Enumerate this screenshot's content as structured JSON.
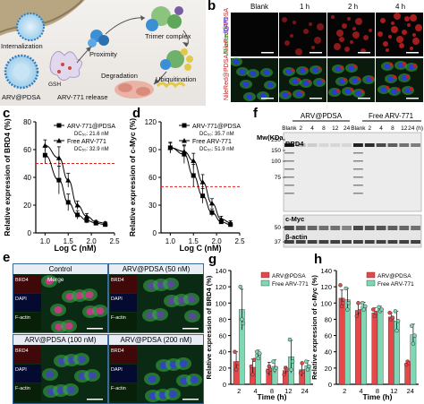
{
  "panel_labels": {
    "a": "a",
    "b": "b",
    "c": "c",
    "d": "d",
    "e": "e",
    "f": "f",
    "g": "g",
    "h": "h"
  },
  "panel_a": {
    "labels": {
      "internalization": "Internalization",
      "proximity": "Proximity",
      "trimer": "Trimer complex",
      "arv_pdsa": "ARV@PDSA",
      "gsh": "GSH",
      "release": "ARV-771 release",
      "degradation": "Degradation",
      "ubiquitination": "Ubiquitination"
    }
  },
  "panel_b": {
    "columns": [
      "Blank",
      "1 h",
      "2 h",
      "4 h"
    ],
    "row_labels": {
      "r1": "NileRed@PDSA",
      "r2a": "NileRed@PDSA",
      "r2b": "/F-actin",
      "r2c": "/DAPI"
    },
    "colors": {
      "red": "#c02020",
      "green": "#35b040",
      "blue": "#2b3bd0"
    }
  },
  "panel_f": {
    "mw_label": "Mw(KDa)",
    "mw_markers": [
      "250",
      "150",
      "100",
      "75",
      "50",
      "37"
    ],
    "groups": [
      "ARV@PDSA",
      "Free ARV-771"
    ],
    "lanes": [
      "Blank",
      "2",
      "4",
      "8",
      "12",
      "24",
      "Blank",
      "2",
      "4",
      "8",
      "12",
      "24 (h)"
    ],
    "bands": [
      "BRD4",
      "c-Myc",
      "β-actin"
    ]
  },
  "panel_e": {
    "images": [
      {
        "title": "Control"
      },
      {
        "title": "ARV@PDSA (50 nM)"
      },
      {
        "title": "ARV@PDSA (100 nM)"
      },
      {
        "title": "ARV@PDSA (200 nM)"
      }
    ],
    "channels": {
      "brd4": "BRD4",
      "dapi": "DAPI",
      "factin": "F-actin",
      "merge": "Merge"
    }
  },
  "chart_data": [
    {
      "panel": "c",
      "type": "line",
      "xlabel": "Log C (nM)",
      "ylabel": "Relative expression of BRD4 (%)",
      "xlim": [
        0.8,
        2.5
      ],
      "ylim": [
        0,
        80
      ],
      "xticks": [
        "1.0",
        "1.5",
        "2.0",
        "2.5"
      ],
      "yticks": [
        "0",
        "20",
        "40",
        "60",
        "80"
      ],
      "threshold": 50,
      "legend": [
        {
          "name": "ARV-771@PDSA",
          "dc50": "DC₅₀: 21.6 nM"
        },
        {
          "name": "Free ARV-771",
          "dc50": "DC₅₀: 32.9 nM"
        }
      ],
      "series": [
        {
          "name": "ARV-771@PDSA",
          "marker": "square",
          "x": [
            1.0,
            1.3,
            1.5,
            1.7,
            1.9,
            2.1,
            2.3
          ],
          "y": [
            56,
            38,
            22,
            13,
            9,
            7,
            6
          ],
          "err": [
            6,
            10,
            6,
            3,
            2,
            1,
            1
          ]
        },
        {
          "name": "Free ARV-771",
          "marker": "triangle",
          "x": [
            1.0,
            1.3,
            1.5,
            1.7,
            1.9,
            2.1,
            2.3
          ],
          "y": [
            63,
            54,
            38,
            20,
            12,
            8,
            7
          ],
          "err": [
            4,
            8,
            5,
            3,
            2,
            1,
            1
          ]
        }
      ]
    },
    {
      "panel": "d",
      "type": "line",
      "xlabel": "Log C (nM)",
      "ylabel": "Relative expression of c-Myc (%)",
      "xlim": [
        0.8,
        2.5
      ],
      "ylim": [
        0,
        120
      ],
      "xticks": [
        "1.0",
        "1.5",
        "2.0",
        "2.5"
      ],
      "yticks": [
        "0",
        "30",
        "60",
        "90",
        "120"
      ],
      "threshold": 50,
      "legend": [
        {
          "name": "ARV-771@PDSA",
          "dc50": "DC₅₀: 35.7 nM"
        },
        {
          "name": "Free ARV-771",
          "dc50": "DC₅₀: 51.9 nM"
        }
      ],
      "series": [
        {
          "name": "ARV-771@PDSA",
          "marker": "square",
          "x": [
            1.0,
            1.3,
            1.5,
            1.7,
            1.9,
            2.1,
            2.3
          ],
          "y": [
            92,
            85,
            62,
            40,
            22,
            12,
            9
          ],
          "err": [
            6,
            10,
            12,
            8,
            4,
            2,
            2
          ]
        },
        {
          "name": "Free ARV-771",
          "marker": "triangle",
          "x": [
            1.0,
            1.3,
            1.5,
            1.7,
            1.9,
            2.1,
            2.3
          ],
          "y": [
            92,
            88,
            78,
            55,
            32,
            15,
            11
          ],
          "err": [
            5,
            6,
            8,
            8,
            5,
            3,
            2
          ]
        }
      ]
    },
    {
      "panel": "g",
      "type": "bar",
      "xlabel": "Time (h)",
      "ylabel": "Relative expression of BRD4 (%)",
      "categories": [
        "2",
        "4",
        "8",
        "12",
        "24"
      ],
      "ylim": [
        0,
        140
      ],
      "yticks": [
        "0",
        "20",
        "40",
        "60",
        "80",
        "100",
        "120",
        "140"
      ],
      "series": [
        {
          "name": "ARV@PDSA",
          "color": "#e8474a",
          "values": [
            28,
            21,
            19,
            17,
            18
          ],
          "err": [
            12,
            10,
            8,
            5,
            8
          ],
          "points": [
            [
              40,
              18,
              26
            ],
            [
              22,
              12,
              30
            ],
            [
              16,
              22,
              18
            ],
            [
              12,
              20,
              18
            ],
            [
              14,
              26,
              16
            ]
          ]
        },
        {
          "name": "Free ARV-771",
          "color": "#7fd7b3",
          "values": [
            92,
            37,
            22,
            34,
            23
          ],
          "err": [
            25,
            5,
            8,
            20,
            6
          ],
          "points": [
            [
              120,
              80,
              75
            ],
            [
              40,
              32,
              38
            ],
            [
              28,
              18,
              20
            ],
            [
              55,
              18,
              28
            ],
            [
              28,
              18,
              22
            ]
          ]
        }
      ]
    },
    {
      "panel": "h",
      "type": "bar",
      "xlabel": "Time (h)",
      "ylabel": "Relative expression of c-Myc (%)",
      "categories": [
        "2",
        "4",
        "8",
        "12",
        "24"
      ],
      "ylim": [
        0,
        140
      ],
      "yticks": [
        "0",
        "20",
        "40",
        "60",
        "80",
        "100",
        "120",
        "140"
      ],
      "series": [
        {
          "name": "ARV@PDSA",
          "color": "#e8474a",
          "values": [
            106,
            91,
            88,
            83,
            26
          ],
          "err": [
            10,
            8,
            6,
            5,
            3
          ],
          "points": [
            [
              122,
              96,
              100
            ],
            [
              84,
              100,
              90
            ],
            [
              92,
              84,
              88
            ],
            [
              88,
              80,
              82
            ],
            [
              24,
              28,
              26
            ]
          ]
        },
        {
          "name": "Free ARV-771",
          "color": "#7fd7b3",
          "values": [
            104,
            96,
            92,
            78,
            61
          ],
          "err": [
            14,
            5,
            4,
            12,
            13
          ],
          "points": [
            [
              118,
              92,
              100
            ],
            [
              100,
              92,
              96
            ],
            [
              95,
              90,
              92
            ],
            [
              90,
              66,
              78
            ],
            [
              72,
              50,
              60
            ]
          ]
        }
      ]
    }
  ]
}
